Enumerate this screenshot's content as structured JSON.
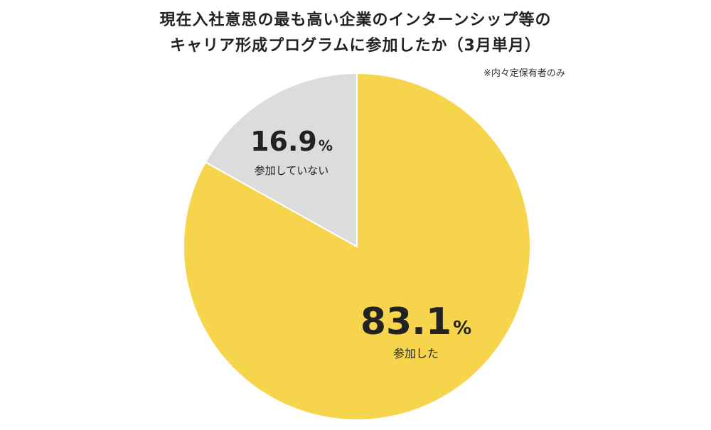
{
  "chart_data": {
    "type": "pie",
    "title_line1": "現在入社意思の最も高い企業のインターンシップ等の",
    "title_line2": "キャリア形成プログラムに参加したか（3月単月）",
    "note": "※内々定保有者のみ",
    "start_angle": "12 o'clock, clockwise",
    "slices": [
      {
        "label": "参加した",
        "value": 83.1,
        "display": "83.1",
        "unit": "%",
        "color": "#F6D44C"
      },
      {
        "label": "参加していない",
        "value": 16.9,
        "display": "16.9",
        "unit": "%",
        "color": "#DCDCDC"
      }
    ]
  }
}
